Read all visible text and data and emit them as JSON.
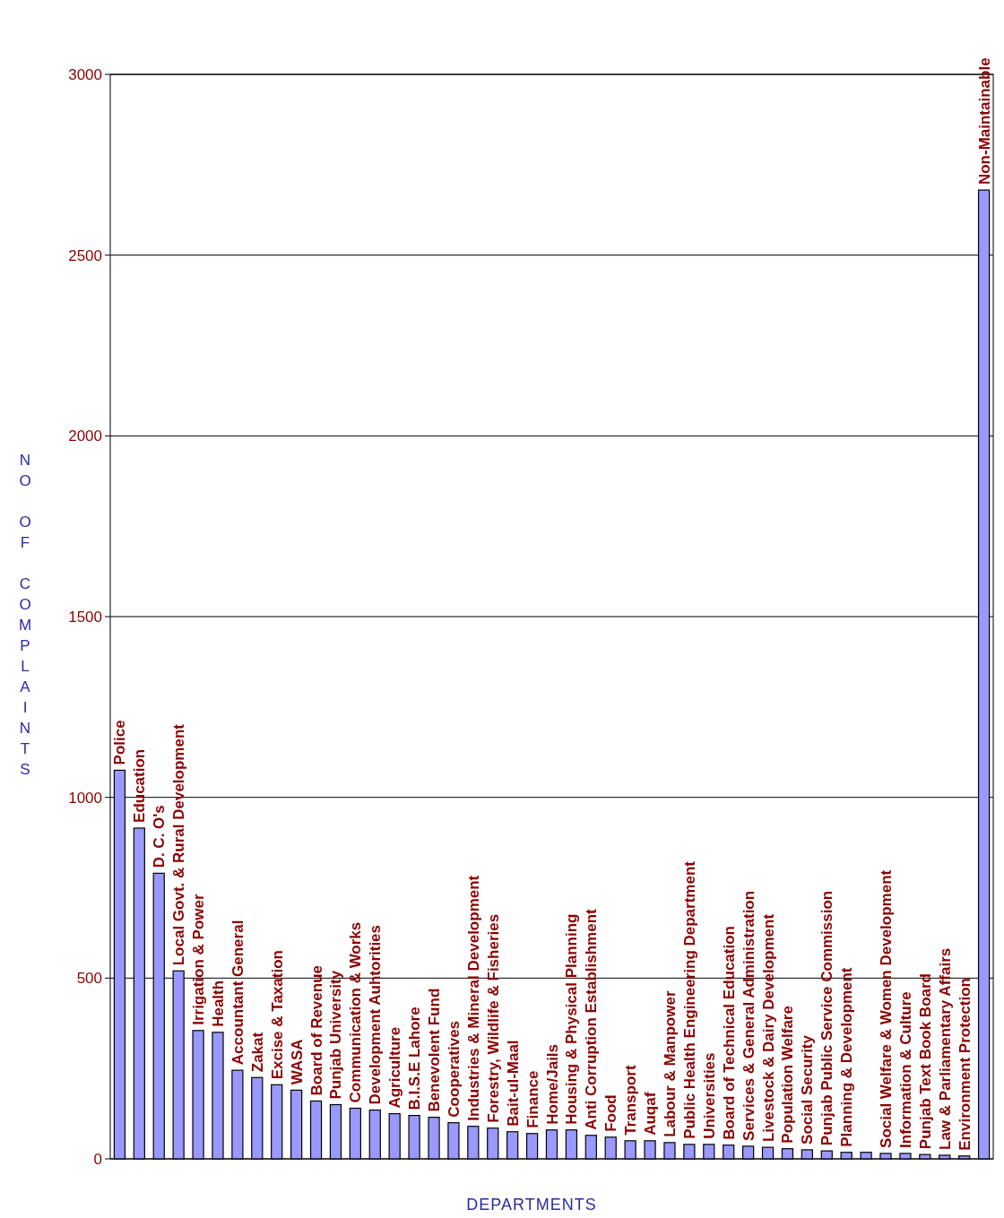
{
  "chart_data": {
    "type": "bar",
    "xlabel": "DEPARTMENTS",
    "ylabel": "NO OF COMPLAINTS",
    "categories": [
      "Police",
      "Education",
      "D. C. O's",
      "Local Govt. & Rural Development",
      "Irrigation & Power",
      "Health",
      "Accountant General",
      "Zakat",
      "Excise & Taxation",
      "WASA",
      "Board of Revenue",
      "Punjab University",
      "Communication & Works",
      "Development Auhtorities",
      "Agriculture",
      "B.I.S.E Lahore",
      "Benevolent Fund",
      "Cooperatives",
      "Industries & Mineral Development",
      "Forestry, Wildlife & Fisheries",
      "Bait-ul-Maal",
      "Finance",
      "Home/Jails",
      "Housing & Physical Planning",
      "Anti Corruption Establishment",
      "Food",
      "Transport",
      "Auqaf",
      "Labour & Manpower",
      "Public Health Engineering Department",
      "Universities",
      "Board of Technical Education",
      "Services & General Administration",
      "Livestock & Dairy Development",
      "Population Welfare",
      "Social Security",
      "Punjab Public Service Commission",
      "Planning & Development",
      null,
      "Social Welfare & Women Development",
      "Information & Culture",
      "Punjab Text Book Board",
      "Law & Parliamentary Affairs",
      "Environment Protection",
      "Non-Maintainable"
    ],
    "values": [
      1075,
      915,
      790,
      520,
      355,
      350,
      245,
      225,
      205,
      190,
      160,
      150,
      140,
      135,
      125,
      120,
      115,
      100,
      90,
      85,
      75,
      70,
      80,
      80,
      65,
      60,
      50,
      50,
      45,
      40,
      40,
      38,
      35,
      32,
      28,
      25,
      22,
      18,
      18,
      15,
      15,
      12,
      10,
      8,
      2680
    ],
    "color": "#9999ff",
    "ylim": [
      0,
      3000
    ],
    "yticks": [
      0,
      500,
      1000,
      1500,
      2000,
      2500,
      3000
    ],
    "grid": "y"
  }
}
